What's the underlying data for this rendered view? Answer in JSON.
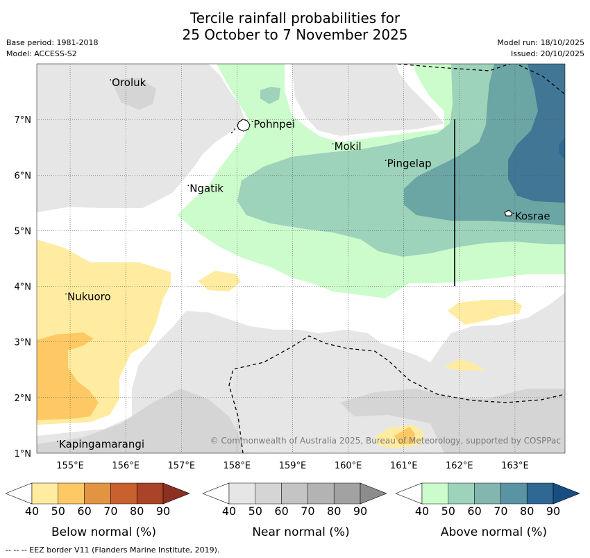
{
  "title": {
    "line1": "Tercile rainfall probabilities for",
    "line2": "25 October to 7 November 2025"
  },
  "meta": {
    "base_period": "Base period: 1981-2018",
    "model": "Model: ACCESS-S2",
    "model_run": "Model run: 18/10/2025",
    "issued": "Issued: 20/10/2025"
  },
  "map": {
    "lat_ticks": [
      "1°N",
      "2°N",
      "3°N",
      "4°N",
      "5°N",
      "6°N",
      "7°N"
    ],
    "lon_ticks": [
      "155°E",
      "156°E",
      "157°E",
      "158°E",
      "159°E",
      "160°E",
      "161°E",
      "162°E",
      "163°E"
    ],
    "places": [
      {
        "name": "Oroluk",
        "lon": 155.75,
        "lat": 7.6
      },
      {
        "name": "Pohnpei",
        "lon": 158.3,
        "lat": 6.85
      },
      {
        "name": "Mokil",
        "lon": 159.75,
        "lat": 6.45
      },
      {
        "name": "Pingelap",
        "lon": 160.7,
        "lat": 6.15
      },
      {
        "name": "Ngatik",
        "lon": 157.15,
        "lat": 5.7
      },
      {
        "name": "Kosrae",
        "lon": 163.0,
        "lat": 5.2
      },
      {
        "name": "Nukuoro",
        "lon": 154.95,
        "lat": 3.75
      },
      {
        "name": "Kapingamarangi",
        "lon": 154.8,
        "lat": 1.1
      }
    ],
    "copyright": "© Commonwealth of Australia 2025, Bureau of Meteorology, supported by COSPPac"
  },
  "colorbars": [
    {
      "title": "Below normal (%)",
      "labels": [
        "40",
        "50",
        "60",
        "70",
        "80",
        "90"
      ],
      "colors": [
        "#ffffff",
        "#ffeca0",
        "#fec965",
        "#e29443",
        "#c9602f",
        "#aa4327",
        "#8c3022"
      ]
    },
    {
      "title": "Near normal (%)",
      "labels": [
        "40",
        "50",
        "60",
        "70",
        "80",
        "90"
      ],
      "colors": [
        "#ffffff",
        "#e6e6e6",
        "#d5d5d5",
        "#c4c4c4",
        "#b3b3b3",
        "#a2a2a2",
        "#8c8c8c"
      ]
    },
    {
      "title": "Above normal (%)",
      "labels": [
        "40",
        "50",
        "60",
        "70",
        "80",
        "90"
      ],
      "colors": [
        "#ffffff",
        "#ccfccc",
        "#9dd2bb",
        "#84b6b0",
        "#5a93a4",
        "#306894",
        "#174e82"
      ]
    }
  ],
  "footnote": "-- -- -- EEZ border V11 (Flanders Marine Institute, 2019)."
}
